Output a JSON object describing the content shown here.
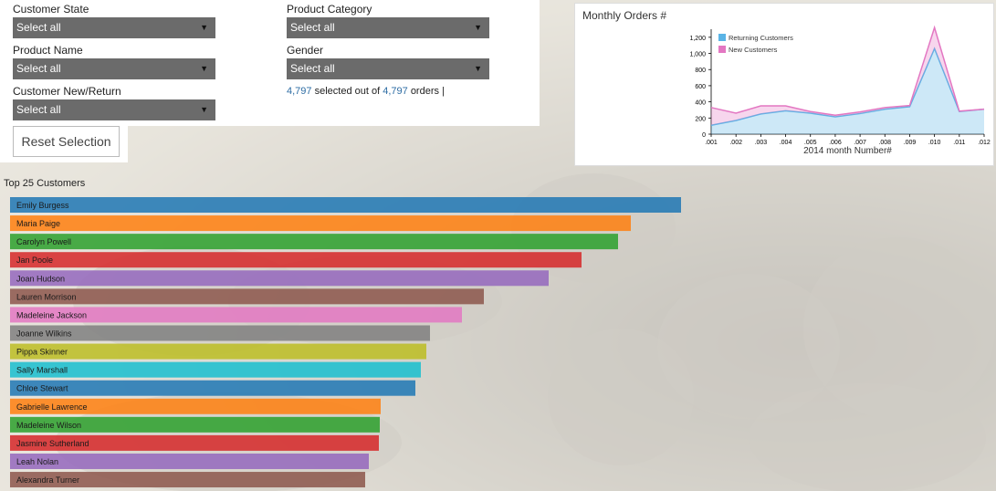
{
  "filters": {
    "customer_state": {
      "label": "Customer State",
      "value": "Select all"
    },
    "product_name": {
      "label": "Product Name",
      "value": "Select all"
    },
    "customer_new_return": {
      "label": "Customer New/Return",
      "value": "Select all"
    },
    "product_category": {
      "label": "Product Category",
      "value": "Select all"
    },
    "gender": {
      "label": "Gender",
      "value": "Select all"
    }
  },
  "selection_info": {
    "selected": "4,797",
    "mid": "selected out of",
    "total": "4,797",
    "suffix": "orders |"
  },
  "reset_label": "Reset Selection",
  "monthly_chart": {
    "panel_title": "Monthly Orders #",
    "chart_data": {
      "type": "area",
      "xlabel": "2014 month Number#",
      "x": [
        ".001",
        ".002",
        ".003",
        ".004",
        ".005",
        ".006",
        ".007",
        ".008",
        ".009",
        ".010",
        ".011",
        ".012"
      ],
      "ylim": [
        0,
        1300
      ],
      "yticks": [
        0,
        200,
        400,
        600,
        800,
        1000,
        1200
      ],
      "ytick_labels": [
        "0",
        "200",
        "400",
        "600",
        "800",
        "1,000",
        "1,200"
      ],
      "legend_position": "top-left",
      "series": [
        {
          "name": "Returning Customers",
          "color": "#5ab4e6",
          "values": [
            110,
            170,
            250,
            290,
            260,
            215,
            255,
            310,
            340,
            1060,
            280,
            310
          ]
        },
        {
          "name": "New Customers",
          "color": "#e377c2",
          "values": [
            220,
            90,
            100,
            60,
            20,
            20,
            20,
            20,
            15,
            260,
            5,
            0
          ]
        }
      ]
    }
  },
  "top_customers": {
    "title": "Top 25 Customers",
    "chart_data": {
      "type": "bar",
      "orientation": "horizontal",
      "categories": [
        "Emily Burgess",
        "Maria Paige",
        "Carolyn Powell",
        "Jan Poole",
        "Joan Hudson",
        "Lauren Morrison",
        "Madeleine Jackson",
        "Joanne Wilkins",
        "Pippa Skinner",
        "Sally Marshall",
        "Chloe Stewart",
        "Gabrielle Lawrence",
        "Madeleine Wilson",
        "Jasmine Sutherland",
        "Leah Nolan",
        "Alexandra Turner"
      ],
      "values": [
        735,
        680,
        666,
        626,
        590,
        519,
        495,
        460,
        456,
        450,
        444,
        406,
        405,
        404,
        393,
        389
      ],
      "colors": [
        "#1f77b4",
        "#ff7f0e",
        "#2ca02c",
        "#d62728",
        "#9467bd",
        "#8c564b",
        "#e377c2",
        "#7f7f7f",
        "#bcbd22",
        "#17becf",
        "#1f77b4",
        "#ff7f0e",
        "#2ca02c",
        "#d62728",
        "#9467bd",
        "#8c564b"
      ]
    }
  }
}
